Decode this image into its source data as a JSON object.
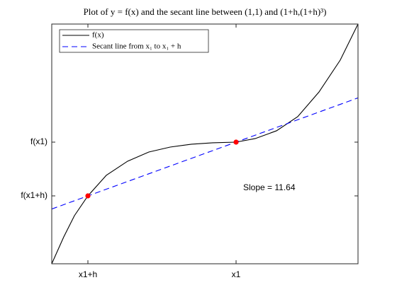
{
  "chart_data": {
    "type": "line",
    "title": "Plot of y = f(x) and the secant line between (1,1) and (1+h,(1+h)³)",
    "xlim": [
      -1.244,
      0.823
    ],
    "ylim": [
      -2.263,
      2.197
    ],
    "xticks": [
      {
        "value": -1,
        "label": "x1+h"
      },
      {
        "value": 0,
        "label": "x1"
      }
    ],
    "yticks": [
      {
        "value": -1,
        "label": "f(x1+h)"
      },
      {
        "value": 0,
        "label": "f(x1)"
      }
    ],
    "legend": "upper left",
    "series": [
      {
        "name": "f(x)",
        "color": "#000000",
        "dash": false,
        "x": [
          -1.244,
          -1.163,
          -1.091,
          -1,
          -0.876,
          -0.732,
          -0.589,
          -0.445,
          -0.301,
          -0.158,
          0,
          0.129,
          0.273,
          0.416,
          0.56,
          0.703,
          0.823
        ],
        "values": [
          -2.263,
          -1.763,
          -1.368,
          -1,
          -0.618,
          -0.355,
          -0.184,
          -0.092,
          -0.039,
          -0.013,
          0,
          0.066,
          0.211,
          0.474,
          0.934,
          1.526,
          2.197
        ]
      },
      {
        "name": "Secant line from x₁ to x₁ + h",
        "color": "#0000ff",
        "dash": true,
        "x": [
          -1.244,
          0.823
        ],
        "values": [
          -1.244,
          0.823
        ]
      }
    ],
    "markers": {
      "color": "#ff0000",
      "x": [
        -1,
        0
      ],
      "values": [
        -1,
        0
      ]
    },
    "annotation": "Slope = 11.64"
  }
}
